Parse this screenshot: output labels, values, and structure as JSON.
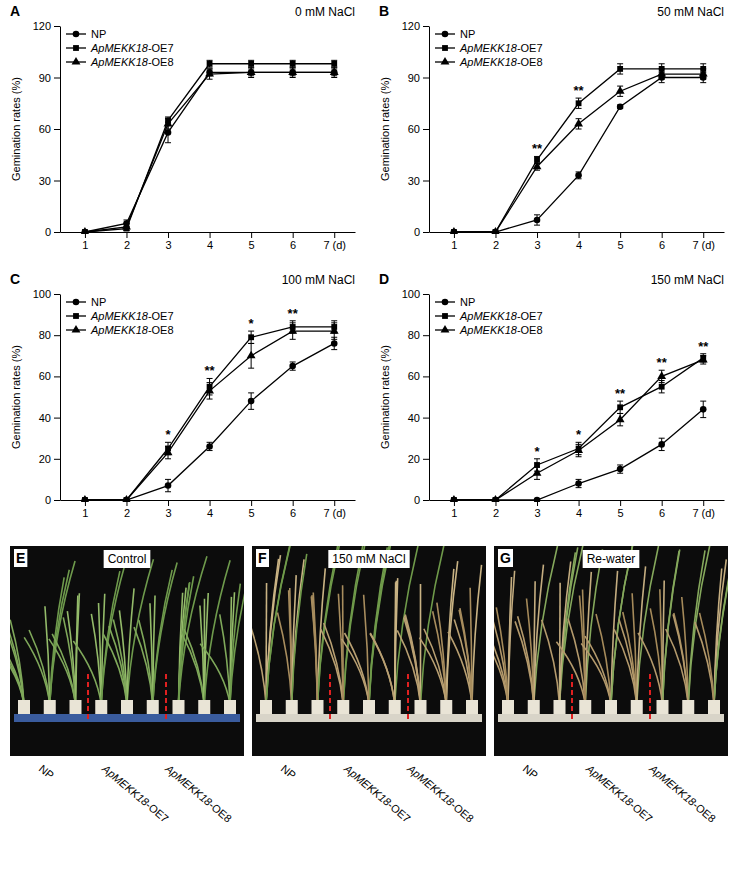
{
  "chart_data": [
    {
      "type": "line",
      "panel_label": "A",
      "title": "0 mM NaCl",
      "y_label": "Gemination rates (%)",
      "x": [
        1,
        2,
        3,
        4,
        5,
        6,
        7
      ],
      "xlim": [
        0.4,
        7.5
      ],
      "xticks": [
        1,
        2,
        3,
        4,
        5,
        6,
        {
          "value": 7,
          "label": "7 (d)"
        }
      ],
      "ylim": [
        0,
        120
      ],
      "yticks": [
        0,
        30,
        60,
        90,
        120
      ],
      "grid": false,
      "legend": "upper left",
      "series": [
        {
          "name": "NP",
          "color": "#000000",
          "marker": "circle",
          "values": [
            0,
            5,
            58,
            93,
            93,
            93,
            93
          ],
          "errors": [
            0,
            2,
            6,
            2,
            2,
            2,
            2
          ]
        },
        {
          "name": "ApMEKK18-OE7",
          "color": "#000000",
          "marker": "square",
          "values": [
            0,
            2,
            65,
            98,
            98,
            98,
            98
          ],
          "errors": [
            0,
            1,
            2,
            2,
            2,
            2,
            2
          ]
        },
        {
          "name": "ApMEKK18-OE8",
          "color": "#000000",
          "marker": "triangle",
          "values": [
            0,
            3,
            63,
            92,
            93,
            93,
            93
          ],
          "errors": [
            0,
            2,
            3,
            3,
            3,
            3,
            3
          ]
        }
      ],
      "annotations": []
    },
    {
      "type": "line",
      "panel_label": "B",
      "title": "50 mM NaCl",
      "y_label": "Gemination rates (%)",
      "x": [
        1,
        2,
        3,
        4,
        5,
        6,
        7
      ],
      "xlim": [
        0.4,
        7.5
      ],
      "xticks": [
        1,
        2,
        3,
        4,
        5,
        6,
        {
          "value": 7,
          "label": "7 (d)"
        }
      ],
      "ylim": [
        0,
        120
      ],
      "yticks": [
        0,
        30,
        60,
        90,
        120
      ],
      "grid": false,
      "legend": "upper left",
      "series": [
        {
          "name": "NP",
          "color": "#000000",
          "marker": "circle",
          "values": [
            0,
            0,
            7,
            33,
            73,
            90,
            90
          ],
          "errors": [
            0,
            0,
            3,
            2,
            1,
            3,
            3
          ]
        },
        {
          "name": "ApMEKK18-OE7",
          "color": "#000000",
          "marker": "square",
          "values": [
            0,
            0,
            42,
            75,
            95,
            95,
            95
          ],
          "errors": [
            0,
            0,
            2,
            3,
            3,
            3,
            3
          ]
        },
        {
          "name": "ApMEKK18-OE8",
          "color": "#000000",
          "marker": "triangle",
          "values": [
            0,
            0,
            38,
            63,
            82,
            92,
            92
          ],
          "errors": [
            0,
            0,
            2,
            3,
            3,
            3,
            3
          ]
        }
      ],
      "annotations": [
        {
          "x": 3,
          "text": "**"
        },
        {
          "x": 4,
          "text": "**"
        }
      ]
    },
    {
      "type": "line",
      "panel_label": "C",
      "title": "100 mM NaCl",
      "y_label": "Gemination rates (%)",
      "x": [
        1,
        2,
        3,
        4,
        5,
        6,
        7
      ],
      "xlim": [
        0.4,
        7.5
      ],
      "xticks": [
        1,
        2,
        3,
        4,
        5,
        6,
        {
          "value": 7,
          "label": "7 (d)"
        }
      ],
      "ylim": [
        0,
        100
      ],
      "yticks": [
        0,
        20,
        40,
        60,
        80,
        100
      ],
      "grid": false,
      "legend": "upper left",
      "series": [
        {
          "name": "NP",
          "color": "#000000",
          "marker": "circle",
          "values": [
            0,
            0,
            7,
            26,
            48,
            65,
            76
          ],
          "errors": [
            0,
            0,
            3,
            2,
            4,
            2,
            3
          ]
        },
        {
          "name": "ApMEKK18-OE7",
          "color": "#000000",
          "marker": "square",
          "values": [
            0,
            0,
            25,
            55,
            79,
            84,
            84
          ],
          "errors": [
            0,
            0,
            3,
            4,
            3,
            3,
            3
          ]
        },
        {
          "name": "ApMEKK18-OE8",
          "color": "#000000",
          "marker": "triangle",
          "values": [
            0,
            0,
            23,
            53,
            70,
            82,
            82
          ],
          "errors": [
            0,
            0,
            3,
            4,
            6,
            4,
            4
          ]
        }
      ],
      "annotations": [
        {
          "x": 3,
          "text": "*"
        },
        {
          "x": 4,
          "text": "**"
        },
        {
          "x": 5,
          "text": "*"
        },
        {
          "x": 6,
          "text": "**"
        }
      ]
    },
    {
      "type": "line",
      "panel_label": "D",
      "title": "150 mM NaCl",
      "y_label": "Gemination rates (%)",
      "x": [
        1,
        2,
        3,
        4,
        5,
        6,
        7
      ],
      "xlim": [
        0.4,
        7.5
      ],
      "xticks": [
        1,
        2,
        3,
        4,
        5,
        6,
        {
          "value": 7,
          "label": "7 (d)"
        }
      ],
      "ylim": [
        0,
        100
      ],
      "yticks": [
        0,
        20,
        40,
        60,
        80,
        100
      ],
      "grid": false,
      "legend": "upper left",
      "series": [
        {
          "name": "NP",
          "color": "#000000",
          "marker": "circle",
          "values": [
            0,
            0,
            0,
            8,
            15,
            27,
            44
          ],
          "errors": [
            0,
            0,
            0,
            2,
            2,
            3,
            4
          ]
        },
        {
          "name": "ApMEKK18-OE7",
          "color": "#000000",
          "marker": "square",
          "values": [
            0,
            0,
            17,
            25,
            45,
            55,
            69
          ],
          "errors": [
            0,
            0,
            3,
            3,
            3,
            3,
            2
          ]
        },
        {
          "name": "ApMEKK18-OE8",
          "color": "#000000",
          "marker": "triangle",
          "values": [
            0,
            0,
            13,
            24,
            39,
            60,
            68
          ],
          "errors": [
            0,
            0,
            3,
            3,
            3,
            3,
            2
          ]
        }
      ],
      "annotations": [
        {
          "x": 3,
          "text": "*"
        },
        {
          "x": 4,
          "text": "*"
        },
        {
          "x": 5,
          "text": "**"
        },
        {
          "x": 6,
          "text": "**"
        },
        {
          "x": 7,
          "text": "**"
        }
      ]
    }
  ],
  "photo_panels": [
    {
      "panel_label": "E",
      "title": "Control",
      "labels": [
        "NP",
        "ApMEKK18-OE7",
        "ApMEKK18-OE8"
      ]
    },
    {
      "panel_label": "F",
      "title": "150 mM NaCl",
      "labels": [
        "NP",
        "ApMEKK18-OE7",
        "ApMEKK18-OE8"
      ]
    },
    {
      "panel_label": "G",
      "title": "Re-water",
      "labels": [
        "NP",
        "ApMEKK18-OE7",
        "ApMEKK18-OE8"
      ]
    }
  ]
}
